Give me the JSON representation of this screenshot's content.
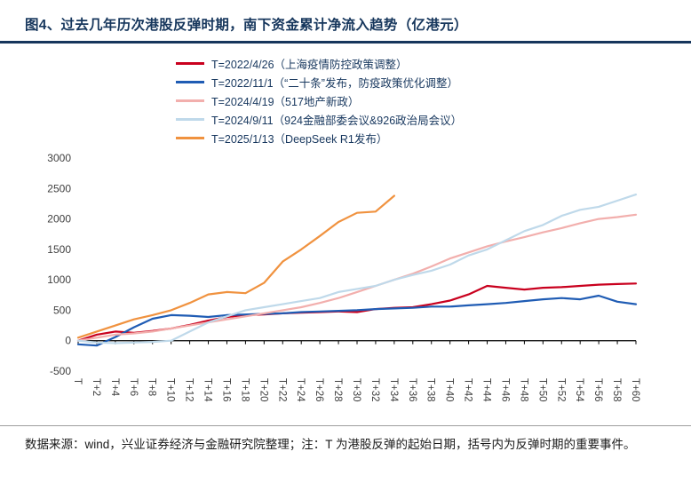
{
  "page": {
    "title": "图4、过去几年历次港股反弹时期，南下资金累计净流入趋势（亿港元）",
    "footer": "数据来源：wind，兴业证券经济与金融研究院整理；注：T 为港股反弹的起始日期，括号内为反弹时期的重要事件。"
  },
  "colors": {
    "accent": "#16365C",
    "legend_text": "#17375E",
    "axis_text": "#404040",
    "axis_line": "#000000"
  },
  "chart_data": {
    "type": "line",
    "title": "南下资金累计净流入趋势（亿港元）",
    "xlabel": "",
    "ylabel": "",
    "ylim": [
      -500,
      3000
    ],
    "y_ticks": [
      3000,
      2500,
      2000,
      1500,
      1000,
      500,
      0,
      -500
    ],
    "x_step": 2,
    "x_tick_labels": [
      "T",
      "T+2",
      "T+4",
      "T+6",
      "T+8",
      "T+10",
      "T+12",
      "T+14",
      "T+16",
      "T+18",
      "T+20",
      "T+22",
      "T+24",
      "T+26",
      "T+28",
      "T+30",
      "T+32",
      "T+34",
      "T+36",
      "T+38",
      "T+40",
      "T+42",
      "T+44",
      "T+46",
      "T+48",
      "T+50",
      "T+52",
      "T+54",
      "T+56",
      "T+58",
      "T+60"
    ],
    "grid": false,
    "legend_position": "top-left",
    "series": [
      {
        "id": "rebound-2022-04-26",
        "name": "T=2022/4/26（上海疫情防控政策调整）",
        "color": "#C9001E",
        "values": [
          0,
          100,
          150,
          130,
          160,
          200,
          260,
          330,
          390,
          420,
          430,
          450,
          460,
          470,
          480,
          470,
          520,
          540,
          550,
          600,
          660,
          760,
          900,
          870,
          840,
          870,
          880,
          900,
          920,
          930,
          940
        ]
      },
      {
        "id": "rebound-2022-11-01",
        "name": "T=2022/11/1（“二十条”发布，防疫政策优化调整）",
        "color": "#1F5CB4",
        "values": [
          -60,
          -80,
          60,
          220,
          360,
          420,
          410,
          390,
          420,
          430,
          440,
          450,
          470,
          480,
          490,
          500,
          520,
          530,
          540,
          560,
          560,
          580,
          600,
          620,
          650,
          680,
          700,
          680,
          740,
          640,
          600
        ]
      },
      {
        "id": "rebound-2024-04-19",
        "name": "T=2024/4/19（517地产新政）",
        "color": "#F2AFAD",
        "values": [
          0,
          50,
          100,
          120,
          150,
          200,
          250,
          300,
          350,
          400,
          450,
          500,
          550,
          620,
          700,
          800,
          900,
          1000,
          1100,
          1220,
          1350,
          1450,
          1550,
          1630,
          1700,
          1780,
          1850,
          1930,
          2000,
          2030,
          2070
        ]
      },
      {
        "id": "rebound-2024-09-11",
        "name": "T=2024/9/11（924金融部委会议&926政治局会议）",
        "color": "#BFD9EA",
        "values": [
          0,
          -30,
          -40,
          -30,
          -20,
          0,
          150,
          300,
          400,
          500,
          550,
          600,
          650,
          700,
          800,
          850,
          900,
          1000,
          1080,
          1150,
          1250,
          1400,
          1500,
          1650,
          1800,
          1900,
          2050,
          2150,
          2200,
          2300,
          2400
        ]
      },
      {
        "id": "rebound-2025-01-13",
        "name": "T=2025/1/13（DeepSeek R1发布）",
        "color": "#F0923F",
        "values": [
          50,
          150,
          250,
          350,
          420,
          500,
          620,
          760,
          800,
          780,
          950,
          1300,
          1500,
          1720,
          1950,
          2100,
          2120,
          2380
        ]
      }
    ]
  }
}
